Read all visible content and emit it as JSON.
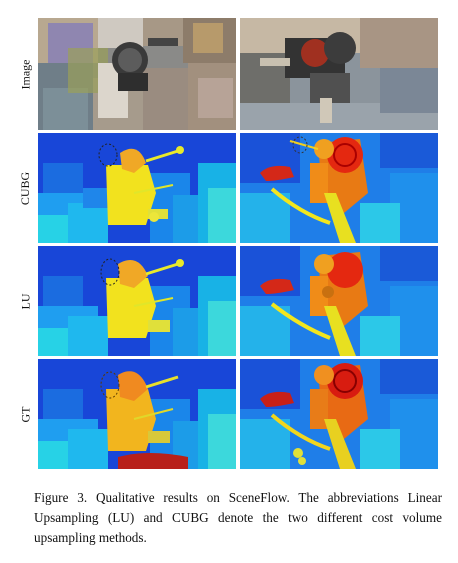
{
  "figure": {
    "rows": [
      {
        "label": "Image",
        "kind": "image"
      },
      {
        "label": "CUBG",
        "kind": "disparity"
      },
      {
        "label": "LU",
        "kind": "disparity"
      },
      {
        "label": "GT",
        "kind": "disparity"
      }
    ]
  },
  "caption": "Figure 3. Qualitative results on SceneFlow. The abbreviations Linear Upsampling (LU) and CUBG denote the two different cost volume upsampling methods."
}
